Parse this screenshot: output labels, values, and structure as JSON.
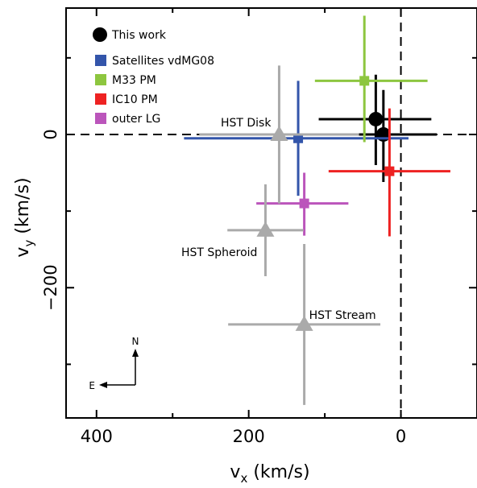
{
  "chart_data": {
    "type": "scatter",
    "xlabel": "v",
    "xlabel_sub": "x",
    "xlabel_unit": " (km/s)",
    "ylabel": "v",
    "ylabel_sub": "y",
    "ylabel_unit": " (km/s)",
    "xlim": [
      440,
      -100
    ],
    "ylim": [
      -370,
      165
    ],
    "x_axis_reversed": true,
    "x_ticks": [
      400,
      200,
      0
    ],
    "x_minor_ticks": [
      300,
      100,
      -100
    ],
    "y_ticks": [
      0,
      -200
    ],
    "y_minor_ticks": [
      100,
      -100,
      -300
    ],
    "reference_lines": [
      {
        "axis": "x",
        "value": 0,
        "style": "dashed"
      },
      {
        "axis": "y",
        "value": 0,
        "style": "dashed"
      }
    ],
    "legend": {
      "placement": "top-left",
      "entries": [
        {
          "label": "This work",
          "marker": "circle",
          "color": "#000000"
        },
        {
          "label": "Satellites vdMG08",
          "marker": "square",
          "color": "#3355aa"
        },
        {
          "label": "M33 PM",
          "marker": "square",
          "color": "#8dc63f"
        },
        {
          "label": "IC10 PM",
          "marker": "square",
          "color": "#ee2222"
        },
        {
          "label": "outer LG",
          "marker": "square",
          "color": "#bb55bb"
        }
      ]
    },
    "series": [
      {
        "name": "This work",
        "marker": "circle",
        "color": "#000000",
        "points": [
          {
            "x": 33,
            "y": 20,
            "xerr": [
              75,
              73
            ],
            "yerr": [
              60,
              58
            ]
          },
          {
            "x": 23,
            "y": 0,
            "xerr": [
              70,
              70
            ],
            "yerr": [
              62,
              58
            ]
          }
        ]
      },
      {
        "name": "Satellites vdMG08",
        "marker": "square",
        "color": "#3355aa",
        "points": [
          {
            "x": 135,
            "y": -5,
            "xerr": [
              150,
              145
            ],
            "yerr": [
              75,
              75
            ]
          }
        ]
      },
      {
        "name": "M33 PM",
        "marker": "square",
        "color": "#8dc63f",
        "points": [
          {
            "x": 48,
            "y": 70,
            "xerr": [
              65,
              83
            ],
            "yerr": [
              80,
              85
            ]
          }
        ]
      },
      {
        "name": "IC10 PM",
        "marker": "square",
        "color": "#ee2222",
        "points": [
          {
            "x": 15,
            "y": -48,
            "xerr": [
              80,
              80
            ],
            "yerr": [
              85,
              82
            ]
          }
        ]
      },
      {
        "name": "outer LG",
        "marker": "square",
        "color": "#bb55bb",
        "points": [
          {
            "x": 127,
            "y": -90,
            "xerr": [
              63,
              58
            ],
            "yerr": [
              42,
              40
            ]
          }
        ]
      },
      {
        "name": "HST",
        "marker": "triangle",
        "color": "#aaaaaa",
        "points": [
          {
            "x": 160,
            "y": 0,
            "xerr": [
              105,
              105
            ],
            "yerr": [
              90,
              90
            ],
            "label": "HST Disk",
            "label_side": "upper-left"
          },
          {
            "x": 178,
            "y": -125,
            "xerr": [
              50,
              50
            ],
            "yerr": [
              60,
              60
            ],
            "label": "HST Spheroid",
            "label_side": "lower-left"
          },
          {
            "x": 127,
            "y": -248,
            "xerr": [
              100,
              100
            ],
            "yerr": [
              105,
              105
            ],
            "label": "HST Stream",
            "label_side": "upper-right"
          }
        ]
      }
    ],
    "compass": {
      "north_label": "N",
      "east_label": "E"
    }
  }
}
